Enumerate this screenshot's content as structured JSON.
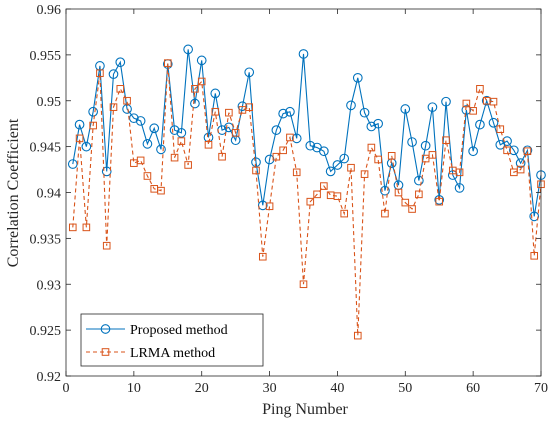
{
  "chart_data": {
    "type": "line",
    "xlabel": "Ping Number",
    "ylabel": "Correlation Coefficient",
    "xlim": [
      0,
      70
    ],
    "ylim": [
      0.92,
      0.96
    ],
    "xticks": [
      "0",
      "10",
      "20",
      "30",
      "40",
      "50",
      "60",
      "70"
    ],
    "yticks": [
      "0.92",
      "0.925",
      "0.93",
      "0.935",
      "0.94",
      "0.945",
      "0.95",
      "0.955",
      "0.96"
    ],
    "x": [
      1,
      2,
      3,
      4,
      5,
      6,
      7,
      8,
      9,
      10,
      11,
      12,
      13,
      14,
      15,
      16,
      17,
      18,
      19,
      20,
      21,
      22,
      23,
      24,
      25,
      26,
      27,
      28,
      29,
      30,
      31,
      32,
      33,
      34,
      35,
      36,
      37,
      38,
      39,
      40,
      41,
      42,
      43,
      44,
      45,
      46,
      47,
      48,
      49,
      50,
      51,
      52,
      53,
      54,
      55,
      56,
      57,
      58,
      59,
      60,
      61,
      62,
      63,
      64,
      65,
      66,
      67,
      68,
      69,
      70
    ],
    "grid": false,
    "legend_position": "bottom-left",
    "series": [
      {
        "name": "Proposed method",
        "color": "#0072BD",
        "line_style": "solid",
        "marker": "circle",
        "values": [
          0.9431,
          0.9474,
          0.945,
          0.9488,
          0.9538,
          0.9423,
          0.9529,
          0.9542,
          0.9491,
          0.9481,
          0.9478,
          0.9453,
          0.947,
          0.9447,
          0.954,
          0.9468,
          0.9465,
          0.9556,
          0.9497,
          0.9544,
          0.946,
          0.9508,
          0.9468,
          0.9471,
          0.9457,
          0.9494,
          0.9531,
          0.9433,
          0.9386,
          0.9436,
          0.9468,
          0.9486,
          0.9488,
          0.9459,
          0.9551,
          0.9451,
          0.9449,
          0.9445,
          0.9423,
          0.943,
          0.9437,
          0.9495,
          0.9525,
          0.9487,
          0.9472,
          0.9475,
          0.9402,
          0.9432,
          0.9408,
          0.9491,
          0.9455,
          0.9413,
          0.9451,
          0.9493,
          0.9392,
          0.9499,
          0.9419,
          0.9405,
          0.949,
          0.9445,
          0.9474,
          0.95,
          0.9476,
          0.9452,
          0.9456,
          0.9446,
          0.9432,
          0.9446,
          0.9374,
          0.9419
        ]
      },
      {
        "name": "LRMA method",
        "color": "#D95319",
        "line_style": "dashed",
        "marker": "square",
        "values": [
          0.9362,
          0.9459,
          0.9362,
          0.9473,
          0.953,
          0.9342,
          0.9493,
          0.9513,
          0.95,
          0.9432,
          0.9435,
          0.9418,
          0.9404,
          0.9402,
          0.9541,
          0.9438,
          0.9456,
          0.943,
          0.9513,
          0.9521,
          0.9452,
          0.9488,
          0.9439,
          0.9487,
          0.9465,
          0.949,
          0.9493,
          0.9424,
          0.933,
          0.9385,
          0.9439,
          0.9446,
          0.946,
          0.9422,
          0.93,
          0.939,
          0.9398,
          0.9407,
          0.9397,
          0.9396,
          0.9377,
          0.9427,
          0.9244,
          0.942,
          0.9449,
          0.9436,
          0.9377,
          0.944,
          0.94,
          0.9389,
          0.9382,
          0.9398,
          0.9437,
          0.9441,
          0.939,
          0.9457,
          0.9424,
          0.9422,
          0.9497,
          0.9489,
          0.9513,
          0.95,
          0.9499,
          0.9469,
          0.9446,
          0.9422,
          0.9425,
          0.9445,
          0.9331,
          0.9409
        ]
      }
    ]
  }
}
